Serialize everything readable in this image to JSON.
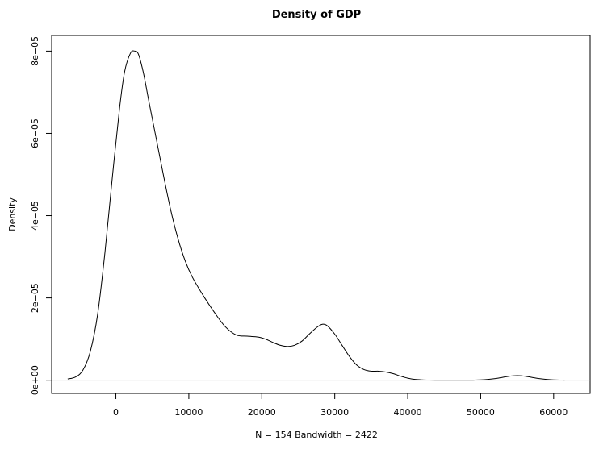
{
  "chart_data": {
    "type": "line",
    "title": "Density of GDP",
    "xlabel": "N = 154   Bandwidth = 2422",
    "ylabel": "Density",
    "xlim": [
      -8800,
      65000
    ],
    "ylim": [
      -3.2e-06,
      8.38e-05
    ],
    "x_ticks": [
      0,
      10000,
      20000,
      30000,
      40000,
      50000,
      60000
    ],
    "x_tick_labels": [
      "0",
      "10000",
      "20000",
      "30000",
      "40000",
      "50000",
      "60000"
    ],
    "y_ticks": [
      0,
      2e-05,
      4e-05,
      6e-05,
      8e-05
    ],
    "y_tick_labels": [
      "0e+00",
      "2e−05",
      "4e−05",
      "6e−05",
      "8e−05"
    ],
    "baseline": 0,
    "grid": false,
    "colors": {
      "line": "#000000",
      "baseline": "#bebebe",
      "frame": "#000000"
    },
    "series": [
      {
        "x": [
          -6600,
          -5500,
          -4500,
          -3500,
          -2500,
          -1500,
          -500,
          500,
          1200,
          2000,
          2600,
          3100,
          3800,
          4500,
          5500,
          6500,
          7500,
          8500,
          9500,
          10500,
          12000,
          13500,
          15000,
          16500,
          18000,
          19500,
          20500,
          21500,
          22500,
          23500,
          24500,
          25500,
          26500,
          27500,
          28300,
          29000,
          30000,
          31000,
          32000,
          33000,
          34000,
          35000,
          36000,
          37000,
          38000,
          39000,
          40000,
          41000,
          42000,
          43000,
          44000,
          45000,
          46000,
          47000,
          48000,
          49000,
          50000,
          51000,
          52000,
          53000,
          54000,
          55000,
          56000,
          57000,
          58000,
          59000,
          60000,
          61500
        ],
        "y": [
          3e-07,
          8e-07,
          2.5e-06,
          7e-06,
          1.6e-05,
          3.1e-05,
          4.9e-05,
          6.6e-05,
          7.5e-05,
          7.95e-05,
          8e-05,
          7.92e-05,
          7.45e-05,
          6.8e-05,
          5.9e-05,
          5e-05,
          4.15e-05,
          3.45e-05,
          2.9e-05,
          2.5e-05,
          2.05e-05,
          1.65e-05,
          1.3e-05,
          1.1e-05,
          1.07e-05,
          1.05e-05,
          1e-05,
          9.2e-06,
          8.5e-06,
          8.2e-06,
          8.5e-06,
          9.5e-06,
          1.12e-05,
          1.28e-05,
          1.36e-05,
          1.32e-05,
          1.12e-05,
          8.5e-06,
          5.8e-06,
          3.7e-06,
          2.6e-06,
          2.2e-06,
          2.2e-06,
          2e-06,
          1.6e-06,
          1e-06,
          5e-07,
          2e-07,
          8e-08,
          3e-08,
          1e-08,
          0,
          0,
          0,
          0,
          2e-08,
          8e-08,
          2e-07,
          4e-07,
          7e-07,
          1e-06,
          1.1e-06,
          1e-06,
          7e-07,
          4e-07,
          2e-07,
          8e-08,
          2e-08
        ]
      }
    ]
  }
}
